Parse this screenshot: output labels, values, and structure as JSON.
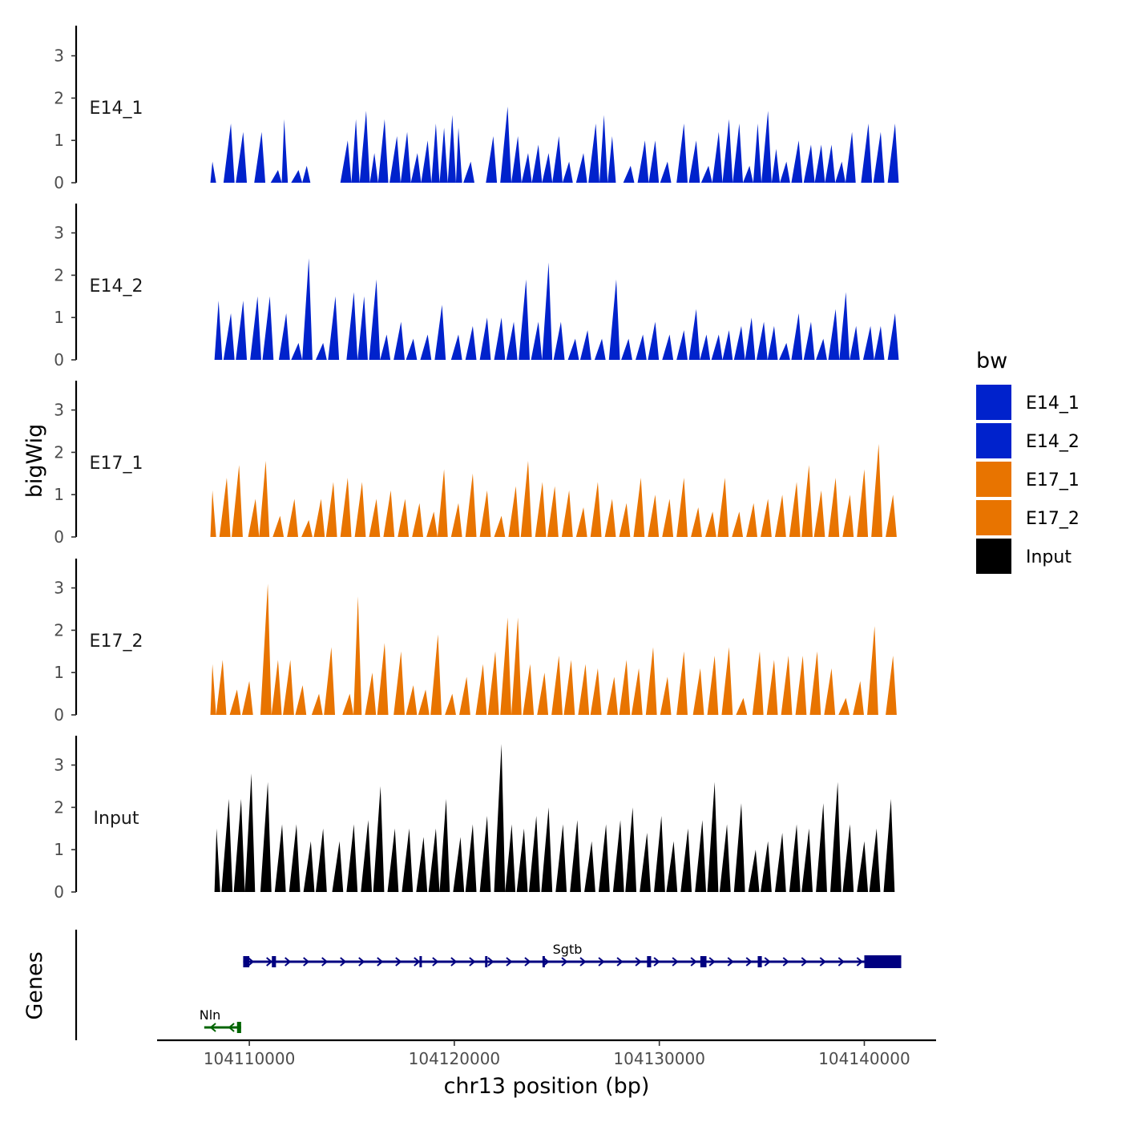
{
  "chart_data": {
    "type": "area",
    "ylabel": "bigWig",
    "xlabel": "chr13 position (bp)",
    "xlim": [
      104105500,
      104143500
    ],
    "ylim": [
      0,
      3.7
    ],
    "yticks": [
      0,
      1,
      2,
      3
    ],
    "xticks": [
      104110000,
      104120000,
      104130000,
      104140000
    ],
    "legend": {
      "title": "bw",
      "placement": "right",
      "entries": [
        {
          "name": "E14_1",
          "color": "#0022CC"
        },
        {
          "name": "E14_2",
          "color": "#0022CC"
        },
        {
          "name": "E17_1",
          "color": "#E87400"
        },
        {
          "name": "E17_2",
          "color": "#E87400"
        },
        {
          "name": "Input",
          "color": "#000000"
        }
      ]
    },
    "series": [
      {
        "name": "E14_1",
        "color": "#0022CC",
        "start": 104108100,
        "end": 104141800,
        "peaks": [
          [
            104108200,
            0.5
          ],
          [
            104109100,
            1.4
          ],
          [
            104109700,
            1.2
          ],
          [
            104110600,
            1.2
          ],
          [
            104111400,
            0.3
          ],
          [
            104111700,
            1.5
          ],
          [
            104112400,
            0.3
          ],
          [
            104112800,
            0.4
          ],
          [
            104114800,
            1.0
          ],
          [
            104115200,
            1.5
          ],
          [
            104115700,
            1.7
          ],
          [
            104116100,
            0.7
          ],
          [
            104116600,
            1.5
          ],
          [
            104117200,
            1.1
          ],
          [
            104117700,
            1.2
          ],
          [
            104118200,
            0.7
          ],
          [
            104118700,
            1.0
          ],
          [
            104119100,
            1.4
          ],
          [
            104119500,
            1.3
          ],
          [
            104119900,
            1.6
          ],
          [
            104120200,
            1.3
          ],
          [
            104120800,
            0.5
          ],
          [
            104121900,
            1.1
          ],
          [
            104122600,
            1.8
          ],
          [
            104123100,
            1.1
          ],
          [
            104123600,
            0.7
          ],
          [
            104124100,
            0.9
          ],
          [
            104124600,
            0.7
          ],
          [
            104125100,
            1.1
          ],
          [
            104125600,
            0.5
          ],
          [
            104126300,
            0.7
          ],
          [
            104126900,
            1.4
          ],
          [
            104127300,
            1.6
          ],
          [
            104127700,
            1.1
          ],
          [
            104128600,
            0.4
          ],
          [
            104129300,
            1.0
          ],
          [
            104129800,
            1.0
          ],
          [
            104130400,
            0.5
          ],
          [
            104131200,
            1.4
          ],
          [
            104131800,
            1.0
          ],
          [
            104132400,
            0.4
          ],
          [
            104132900,
            1.2
          ],
          [
            104133400,
            1.5
          ],
          [
            104133900,
            1.4
          ],
          [
            104134400,
            0.4
          ],
          [
            104134800,
            1.4
          ],
          [
            104135300,
            1.7
          ],
          [
            104135700,
            0.8
          ],
          [
            104136200,
            0.5
          ],
          [
            104136800,
            1.0
          ],
          [
            104137400,
            0.9
          ],
          [
            104137900,
            0.9
          ],
          [
            104138400,
            0.9
          ],
          [
            104138900,
            0.5
          ],
          [
            104139400,
            1.2
          ],
          [
            104140200,
            1.4
          ],
          [
            104140800,
            1.2
          ],
          [
            104141500,
            1.4
          ]
        ]
      },
      {
        "name": "E14_2",
        "color": "#0022CC",
        "start": 104108300,
        "end": 104141800,
        "peaks": [
          [
            104108500,
            1.4
          ],
          [
            104109100,
            1.1
          ],
          [
            104109700,
            1.4
          ],
          [
            104110400,
            1.5
          ],
          [
            104111000,
            1.5
          ],
          [
            104111800,
            1.1
          ],
          [
            104112400,
            0.4
          ],
          [
            104112900,
            2.4
          ],
          [
            104113600,
            0.4
          ],
          [
            104114200,
            1.5
          ],
          [
            104115100,
            1.6
          ],
          [
            104115600,
            1.5
          ],
          [
            104116200,
            1.9
          ],
          [
            104116700,
            0.6
          ],
          [
            104117400,
            0.9
          ],
          [
            104118000,
            0.5
          ],
          [
            104118700,
            0.6
          ],
          [
            104119400,
            1.3
          ],
          [
            104120200,
            0.6
          ],
          [
            104120900,
            0.8
          ],
          [
            104121600,
            1.0
          ],
          [
            104122300,
            1.0
          ],
          [
            104122900,
            0.9
          ],
          [
            104123500,
            1.9
          ],
          [
            104124100,
            0.9
          ],
          [
            104124600,
            2.3
          ],
          [
            104125200,
            0.9
          ],
          [
            104125900,
            0.5
          ],
          [
            104126500,
            0.7
          ],
          [
            104127200,
            0.5
          ],
          [
            104127900,
            1.9
          ],
          [
            104128500,
            0.5
          ],
          [
            104129200,
            0.6
          ],
          [
            104129800,
            0.9
          ],
          [
            104130500,
            0.6
          ],
          [
            104131200,
            0.7
          ],
          [
            104131800,
            1.2
          ],
          [
            104132300,
            0.6
          ],
          [
            104132900,
            0.6
          ],
          [
            104133400,
            0.7
          ],
          [
            104134000,
            0.8
          ],
          [
            104134500,
            1.0
          ],
          [
            104135100,
            0.9
          ],
          [
            104135600,
            0.8
          ],
          [
            104136200,
            0.4
          ],
          [
            104136800,
            1.1
          ],
          [
            104137400,
            0.9
          ],
          [
            104138000,
            0.5
          ],
          [
            104138600,
            1.2
          ],
          [
            104139100,
            1.6
          ],
          [
            104139600,
            0.8
          ],
          [
            104140300,
            0.8
          ],
          [
            104140800,
            0.8
          ],
          [
            104141500,
            1.1
          ]
        ]
      },
      {
        "name": "E17_1",
        "color": "#E87400",
        "start": 104108100,
        "end": 104141800,
        "peaks": [
          [
            104108200,
            1.1
          ],
          [
            104108900,
            1.4
          ],
          [
            104109500,
            1.7
          ],
          [
            104110300,
            0.9
          ],
          [
            104110800,
            1.8
          ],
          [
            104111500,
            0.5
          ],
          [
            104112200,
            0.9
          ],
          [
            104112900,
            0.4
          ],
          [
            104113500,
            0.9
          ],
          [
            104114100,
            1.3
          ],
          [
            104114800,
            1.4
          ],
          [
            104115500,
            1.3
          ],
          [
            104116200,
            0.9
          ],
          [
            104116900,
            1.1
          ],
          [
            104117600,
            0.9
          ],
          [
            104118300,
            0.8
          ],
          [
            104119000,
            0.6
          ],
          [
            104119500,
            1.6
          ],
          [
            104120200,
            0.8
          ],
          [
            104120900,
            1.5
          ],
          [
            104121600,
            1.1
          ],
          [
            104122300,
            0.5
          ],
          [
            104123000,
            1.2
          ],
          [
            104123600,
            1.8
          ],
          [
            104124300,
            1.3
          ],
          [
            104124900,
            1.2
          ],
          [
            104125600,
            1.1
          ],
          [
            104126300,
            0.7
          ],
          [
            104127000,
            1.3
          ],
          [
            104127700,
            0.9
          ],
          [
            104128400,
            0.8
          ],
          [
            104129100,
            1.4
          ],
          [
            104129800,
            1.0
          ],
          [
            104130500,
            0.9
          ],
          [
            104131200,
            1.4
          ],
          [
            104131900,
            0.7
          ],
          [
            104132600,
            0.6
          ],
          [
            104133200,
            1.4
          ],
          [
            104133900,
            0.6
          ],
          [
            104134600,
            0.8
          ],
          [
            104135300,
            0.9
          ],
          [
            104136000,
            1.0
          ],
          [
            104136700,
            1.3
          ],
          [
            104137300,
            1.7
          ],
          [
            104137900,
            1.1
          ],
          [
            104138600,
            1.4
          ],
          [
            104139300,
            1.0
          ],
          [
            104140000,
            1.6
          ],
          [
            104140700,
            2.2
          ],
          [
            104141400,
            1.0
          ]
        ]
      },
      {
        "name": "E17_2",
        "color": "#E87400",
        "start": 104108100,
        "end": 104141800,
        "peaks": [
          [
            104108200,
            1.2
          ],
          [
            104108700,
            1.3
          ],
          [
            104109400,
            0.6
          ],
          [
            104110000,
            0.8
          ],
          [
            104110900,
            3.1
          ],
          [
            104111400,
            1.3
          ],
          [
            104112000,
            1.3
          ],
          [
            104112600,
            0.7
          ],
          [
            104113400,
            0.5
          ],
          [
            104114000,
            1.6
          ],
          [
            104114900,
            0.5
          ],
          [
            104115300,
            2.8
          ],
          [
            104116000,
            1.0
          ],
          [
            104116600,
            1.7
          ],
          [
            104117400,
            1.5
          ],
          [
            104118000,
            0.7
          ],
          [
            104118600,
            0.6
          ],
          [
            104119200,
            1.9
          ],
          [
            104119900,
            0.5
          ],
          [
            104120600,
            0.9
          ],
          [
            104121400,
            1.2
          ],
          [
            104122000,
            1.5
          ],
          [
            104122600,
            2.3
          ],
          [
            104123100,
            2.3
          ],
          [
            104123700,
            1.2
          ],
          [
            104124400,
            1.0
          ],
          [
            104125100,
            1.4
          ],
          [
            104125700,
            1.3
          ],
          [
            104126400,
            1.2
          ],
          [
            104127000,
            1.1
          ],
          [
            104127800,
            0.9
          ],
          [
            104128400,
            1.3
          ],
          [
            104129000,
            1.1
          ],
          [
            104129700,
            1.6
          ],
          [
            104130400,
            0.9
          ],
          [
            104131200,
            1.5
          ],
          [
            104132000,
            1.1
          ],
          [
            104132700,
            1.4
          ],
          [
            104133400,
            1.6
          ],
          [
            104134100,
            0.4
          ],
          [
            104134900,
            1.5
          ],
          [
            104135600,
            1.3
          ],
          [
            104136300,
            1.4
          ],
          [
            104137000,
            1.4
          ],
          [
            104137700,
            1.5
          ],
          [
            104138400,
            1.1
          ],
          [
            104139100,
            0.4
          ],
          [
            104139800,
            0.8
          ],
          [
            104140500,
            2.1
          ],
          [
            104141400,
            1.4
          ]
        ]
      },
      {
        "name": "Input",
        "color": "#000000",
        "start": 104108300,
        "end": 104141800,
        "peaks": [
          [
            104108400,
            1.5
          ],
          [
            104109000,
            2.2
          ],
          [
            104109600,
            2.2
          ],
          [
            104110100,
            2.8
          ],
          [
            104110900,
            2.6
          ],
          [
            104111600,
            1.6
          ],
          [
            104112300,
            1.6
          ],
          [
            104113000,
            1.2
          ],
          [
            104113600,
            1.5
          ],
          [
            104114400,
            1.2
          ],
          [
            104115100,
            1.6
          ],
          [
            104115800,
            1.7
          ],
          [
            104116400,
            2.5
          ],
          [
            104117100,
            1.5
          ],
          [
            104117800,
            1.5
          ],
          [
            104118500,
            1.3
          ],
          [
            104119100,
            1.5
          ],
          [
            104119600,
            2.2
          ],
          [
            104120300,
            1.3
          ],
          [
            104120900,
            1.6
          ],
          [
            104121600,
            1.8
          ],
          [
            104122300,
            3.5
          ],
          [
            104122800,
            1.6
          ],
          [
            104123400,
            1.5
          ],
          [
            104124000,
            1.8
          ],
          [
            104124600,
            2.0
          ],
          [
            104125300,
            1.6
          ],
          [
            104126000,
            1.7
          ],
          [
            104126700,
            1.2
          ],
          [
            104127400,
            1.6
          ],
          [
            104128100,
            1.7
          ],
          [
            104128700,
            2.0
          ],
          [
            104129400,
            1.4
          ],
          [
            104130100,
            1.8
          ],
          [
            104130700,
            1.2
          ],
          [
            104131400,
            1.5
          ],
          [
            104132100,
            1.7
          ],
          [
            104132700,
            2.6
          ],
          [
            104133300,
            1.6
          ],
          [
            104134000,
            2.1
          ],
          [
            104134700,
            1.0
          ],
          [
            104135300,
            1.2
          ],
          [
            104136000,
            1.4
          ],
          [
            104136700,
            1.6
          ],
          [
            104137300,
            1.5
          ],
          [
            104138000,
            2.1
          ],
          [
            104138700,
            2.6
          ],
          [
            104139300,
            1.6
          ],
          [
            104140000,
            1.2
          ],
          [
            104140600,
            1.5
          ],
          [
            104141300,
            2.2
          ]
        ]
      }
    ],
    "genes": {
      "ylabel": "Genes",
      "items": [
        {
          "name": "Sgtb",
          "strand": "+",
          "start": 104109700,
          "end": 104141800,
          "color": "#000080",
          "exons": [
            [
              104109700,
              104110000
            ],
            [
              104111100,
              104111300
            ],
            [
              104118300,
              104118400
            ],
            [
              104121500,
              104121600
            ],
            [
              104124300,
              104124400
            ],
            [
              104129400,
              104129600
            ],
            [
              104132000,
              104132300
            ],
            [
              104134800,
              104135000
            ],
            [
              104140000,
              104141800
            ]
          ]
        },
        {
          "name": "Nln",
          "strand": "-",
          "start": 104107800,
          "end": 104109600,
          "color": "#006400",
          "exons": [
            [
              104109400,
              104109600
            ]
          ]
        }
      ]
    }
  }
}
